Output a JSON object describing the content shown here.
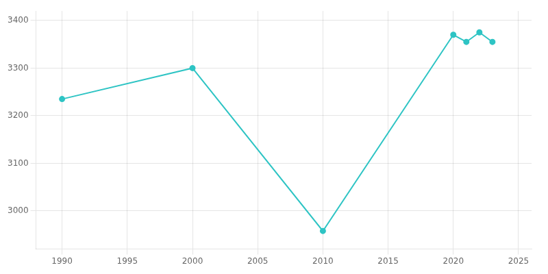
{
  "chart_data": {
    "type": "line",
    "x": [
      1990,
      2000,
      2010,
      2020,
      2021,
      2022,
      2023
    ],
    "values": [
      3235,
      3300,
      2958,
      3370,
      3355,
      3375,
      3355
    ],
    "color": "#2EC4C4",
    "marker": "circle",
    "xlim": [
      1988,
      2026
    ],
    "ylim": [
      2920,
      3420
    ],
    "xticks": [
      1990,
      1995,
      2000,
      2005,
      2010,
      2015,
      2020,
      2025
    ],
    "yticks": [
      3000,
      3100,
      3200,
      3300,
      3400
    ],
    "grid": true
  }
}
